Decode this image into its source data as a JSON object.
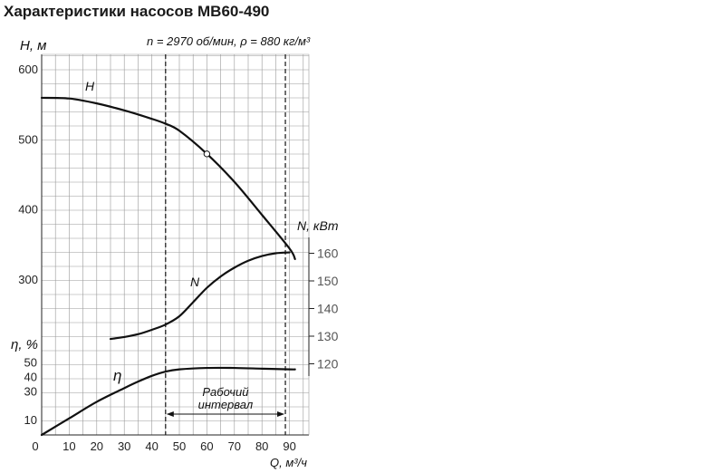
{
  "title": "Характеристики насосов МВ60-490",
  "conditions": "n = 2970 об/мин, ρ = 880 кг/м³",
  "chart_data": {
    "type": "line",
    "x": {
      "label": "Q, м³/ч",
      "range": [
        0,
        95
      ],
      "ticks": [
        "0",
        "10",
        "20",
        "30",
        "40",
        "50",
        "60",
        "70",
        "80",
        "90"
      ]
    },
    "y_head": {
      "label": "H, м",
      "range": [
        260,
        610
      ],
      "ticks": [
        "300",
        "400",
        "500",
        "600"
      ]
    },
    "y_power": {
      "label": "N, кВт",
      "range": [
        115,
        165
      ],
      "ticks": [
        "120",
        "130",
        "140",
        "150",
        "160"
      ]
    },
    "y_eff": {
      "label": "η, %",
      "range": [
        0,
        55
      ],
      "ticks": [
        "10",
        "30",
        "40",
        "50"
      ]
    },
    "grid": true,
    "series": [
      {
        "name": "H",
        "axis": "y_head",
        "x": [
          0,
          10,
          20,
          30,
          40,
          45,
          50,
          60,
          70,
          80,
          90,
          92
        ],
        "y": [
          560,
          559,
          552,
          542,
          530,
          523,
          513,
          480,
          440,
          393,
          345,
          330
        ]
      },
      {
        "name": "N",
        "axis": "y_power",
        "x": [
          25,
          30,
          35,
          40,
          45,
          50,
          55,
          60,
          65,
          70,
          75,
          80,
          85,
          90
        ],
        "y": [
          129,
          129.7,
          130.7,
          132.3,
          134.2,
          137.2,
          142.3,
          147.5,
          151.6,
          154.8,
          157.3,
          159,
          160,
          160.3
        ]
      },
      {
        "name": "η",
        "axis": "y_eff",
        "x": [
          0,
          10,
          20,
          30,
          35,
          40,
          45,
          50,
          60,
          70,
          80,
          90,
          92
        ],
        "y": [
          0,
          11.5,
          23,
          32.5,
          37,
          41,
          44,
          45.5,
          46.5,
          46.5,
          46,
          45.5,
          45.5
        ]
      }
    ],
    "marker": {
      "series": "H",
      "x": 60,
      "y": 480
    },
    "working_interval": {
      "x_start": 45,
      "x_end": 88.5,
      "label": "Рабочий интервал"
    }
  }
}
